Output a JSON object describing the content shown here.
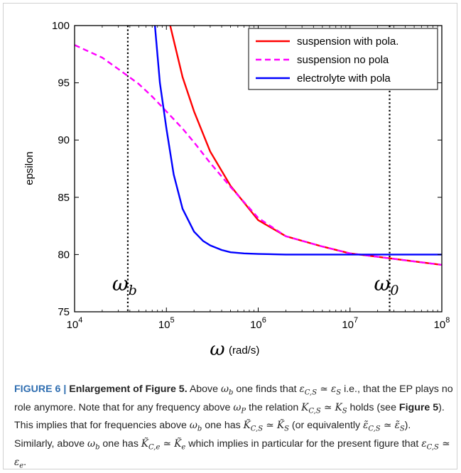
{
  "chart_data": {
    "type": "line",
    "xscale": "log",
    "xlim": [
      10000,
      100000000
    ],
    "ylim": [
      75,
      100
    ],
    "ylabel": "epsilon",
    "xlabel_symbol": "ω",
    "xlabel_unit": "(rad/s)",
    "x_ticks": [
      {
        "value": 10000,
        "base": "10",
        "exp": "4"
      },
      {
        "value": 100000,
        "base": "10",
        "exp": "5"
      },
      {
        "value": 1000000,
        "base": "10",
        "exp": "6"
      },
      {
        "value": 10000000,
        "base": "10",
        "exp": "7"
      },
      {
        "value": 100000000,
        "base": "10",
        "exp": "8"
      }
    ],
    "y_ticks": [
      75,
      80,
      85,
      90,
      95,
      100
    ],
    "legend_position": "top-right",
    "series": [
      {
        "name": "suspension with pola.",
        "color": "#ff0000",
        "style": "solid",
        "x": [
          110000,
          150000,
          200000,
          300000,
          500000,
          1000000,
          2000000,
          5000000,
          10000000,
          20000000,
          50000000,
          100000000
        ],
        "y": [
          100,
          95.5,
          92.5,
          89,
          86,
          83,
          81.6,
          80.7,
          80.1,
          79.8,
          79.4,
          79.1
        ]
      },
      {
        "name": "suspension no pola",
        "color": "#ff00ff",
        "style": "dashed",
        "x": [
          10000,
          20000,
          30000,
          50000,
          70000,
          100000,
          150000,
          200000,
          300000,
          500000,
          1000000,
          2000000,
          5000000,
          10000000,
          20000000,
          50000000,
          100000000
        ],
        "y": [
          98.3,
          97.2,
          96.2,
          94.9,
          93.8,
          92.5,
          91,
          89.8,
          88,
          85.9,
          83.2,
          81.6,
          80.7,
          80.1,
          79.8,
          79.4,
          79.1
        ]
      },
      {
        "name": "electrolyte with pola",
        "color": "#0000ff",
        "style": "solid",
        "x": [
          75000,
          85000,
          100000,
          120000,
          150000,
          200000,
          250000,
          300000,
          400000,
          500000,
          700000,
          1000000,
          2000000,
          100000000
        ],
        "y": [
          100,
          95,
          91,
          87,
          84,
          82,
          81.2,
          80.8,
          80.4,
          80.2,
          80.1,
          80.05,
          80,
          80
        ]
      }
    ],
    "vlines": [
      {
        "x": 38000,
        "label": "b"
      },
      {
        "x": 27000000,
        "label": "0"
      }
    ]
  },
  "caption": {
    "label": "FIGURE 6 |",
    "title": "Enlargement of Figure 5.",
    "line1_a": "Above",
    "line1_b": "one finds that",
    "line1_c": "i.e.,",
    "line2": "that the EP plays no role anymore. Note that for any frequency above",
    "line2_b": "the",
    "line3_a": "relation",
    "line3_b": "holds (see",
    "line3_fig": "Figure 5",
    "line3_c": "). This implies that for frequencies above",
    "line4_a": "one has",
    "line4_b": "(or equivalently",
    "line4_c": "). Similarly, above",
    "line4_d": "one has",
    "line5": "which implies in particular for the present figure that",
    "math_omega_b": "ω",
    "math_sub_b": "b",
    "math_omega_p_sub": "P",
    "math_eps_cs": "ε",
    "math_sub_cs": "C,S",
    "math_eq": "≃",
    "math_eps_s": "ε",
    "math_sub_s": "S",
    "math_K": "K",
    "math_Ktilde": "K̃",
    "math_epstilde": "ε̃",
    "math_sub_ce": "C,e",
    "math_sub_e": "e"
  }
}
